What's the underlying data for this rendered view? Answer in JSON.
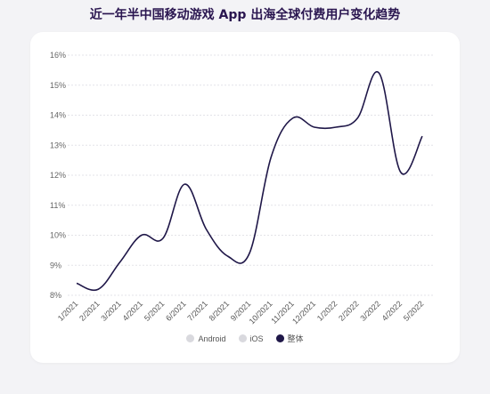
{
  "title": "近一年半中国移动游戏 App 出海全球付费用户变化趋势",
  "colors": {
    "series_line": "#1f1748",
    "legend_android": "#d9d9de",
    "legend_ios": "#d9d9de",
    "legend_overall": "#1f1748"
  },
  "chart_data": {
    "type": "line",
    "categories": [
      "1/2021",
      "2/2021",
      "3/2021",
      "4/2021",
      "5/2021",
      "6/2021",
      "7/2021",
      "8/2021",
      "9/2021",
      "10/2021",
      "11/2021",
      "12/2021",
      "1/2022",
      "2/2022",
      "3/2022",
      "4/2022",
      "5/2022"
    ],
    "y_ticks": [
      "8%",
      "9%",
      "10%",
      "11%",
      "12%",
      "13%",
      "14%",
      "15%",
      "16%"
    ],
    "ylim": [
      8,
      16
    ],
    "series": [
      {
        "name": "整体",
        "values": [
          8.4,
          8.2,
          9.1,
          10.0,
          9.9,
          11.7,
          10.2,
          9.3,
          9.4,
          12.6,
          13.9,
          13.6,
          13.6,
          13.9,
          15.4,
          12.1,
          13.3
        ]
      }
    ],
    "legend": [
      {
        "label": "Android",
        "color_key": "legend_android"
      },
      {
        "label": "iOS",
        "color_key": "legend_ios"
      },
      {
        "label": "整体",
        "color_key": "legend_overall"
      }
    ],
    "legend_position": "bottom",
    "grid": true
  }
}
